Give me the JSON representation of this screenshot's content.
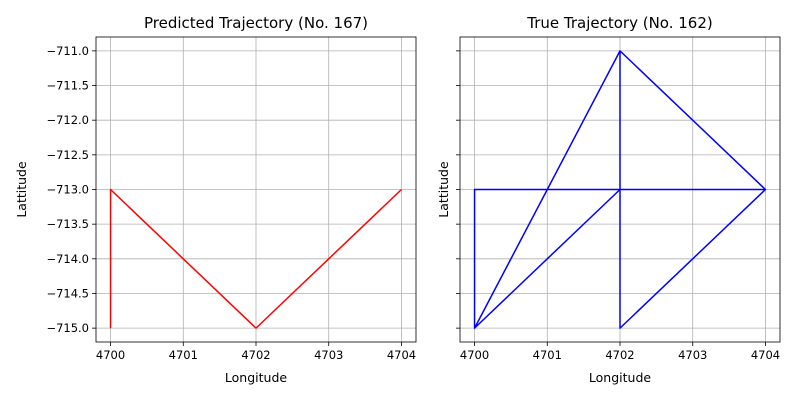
{
  "chart_data": [
    {
      "type": "line",
      "title": "Predicted Trajectory (No. 167)",
      "xlabel": "Longitude",
      "ylabel": "Lattitude",
      "xlim": [
        4699.8,
        4704.2
      ],
      "ylim": [
        -715.2,
        -710.8
      ],
      "xticks": [
        "4700",
        "4701",
        "4702",
        "4703",
        "4704"
      ],
      "yticks": [
        "−711.0",
        "−711.5",
        "−712.0",
        "−712.5",
        "−713.0",
        "−713.5",
        "−714.0",
        "−714.5",
        "−715.0"
      ],
      "show_ytick_labels": true,
      "grid": true,
      "color": "#ff0000",
      "points": [
        [
          4700,
          -715
        ],
        [
          4700,
          -713
        ],
        [
          4702,
          -715
        ],
        [
          4704,
          -713
        ]
      ]
    },
    {
      "type": "line",
      "title": "True Trajectory (No. 162)",
      "xlabel": "Longitude",
      "ylabel": "Lattitude",
      "xlim": [
        4699.8,
        4704.2
      ],
      "ylim": [
        -715.2,
        -710.8
      ],
      "xticks": [
        "4700",
        "4701",
        "4702",
        "4703",
        "4704"
      ],
      "yticks": [
        "−711.0",
        "−711.5",
        "−712.0",
        "−712.5",
        "−713.0",
        "−713.5",
        "−714.0",
        "−714.5",
        "−715.0"
      ],
      "show_ytick_labels": false,
      "grid": true,
      "color": "#0000ff",
      "points": [
        [
          4702,
          -715
        ],
        [
          4702,
          -713
        ],
        [
          4704,
          -713
        ],
        [
          4702,
          -711
        ],
        [
          4700,
          -715
        ],
        [
          4700,
          -713
        ],
        [
          4704,
          -713
        ],
        [
          4702,
          -715
        ],
        [
          4704,
          -713
        ],
        [
          4702,
          -711
        ],
        [
          4702,
          -713
        ],
        [
          4700,
          -715
        ],
        [
          4702,
          -711
        ],
        [
          4704,
          -713
        ]
      ]
    }
  ]
}
